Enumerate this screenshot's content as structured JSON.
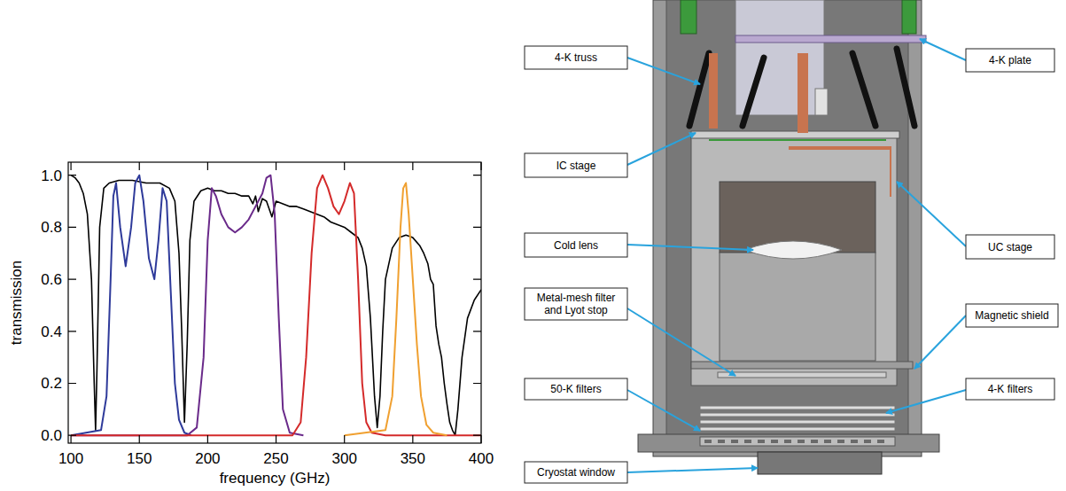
{
  "chart_data": {
    "type": "line",
    "x_label": "frequency (GHz)",
    "y_label": "transmission",
    "xlim": [
      98,
      400
    ],
    "ylim": [
      -0.03,
      1.05
    ],
    "xticks": [
      100,
      150,
      200,
      250,
      300,
      350,
      400
    ],
    "yticks": [
      {
        "value": 0,
        "label": "0.0"
      },
      {
        "value": 0.2,
        "label": "0.2"
      },
      {
        "value": 0.4,
        "label": "0.4"
      },
      {
        "value": 0.6,
        "label": "0.6"
      },
      {
        "value": 0.8,
        "label": "0.8"
      },
      {
        "value": 1,
        "label": "1.0"
      }
    ],
    "grid": false,
    "series": [
      {
        "color": "#000000",
        "x": [
          100,
          103,
          106,
          109,
          112,
          115,
          117,
          118,
          119,
          121,
          124,
          128,
          135,
          145,
          155,
          165,
          172,
          176,
          179,
          181,
          183,
          185,
          187,
          190,
          195,
          200,
          205,
          210,
          215,
          220,
          225,
          230,
          233,
          235,
          237,
          240,
          243,
          247,
          250,
          255,
          260,
          265,
          270,
          275,
          280,
          285,
          290,
          295,
          300,
          305,
          310,
          313,
          316,
          319,
          322,
          324,
          326,
          328,
          330,
          335,
          340,
          345,
          350,
          355,
          358,
          361,
          363,
          365,
          367,
          369,
          371,
          373,
          375,
          377,
          379,
          381,
          383,
          386,
          390,
          395,
          400
        ],
        "values": [
          1.0,
          0.99,
          0.97,
          0.93,
          0.85,
          0.6,
          0.2,
          0.02,
          0.25,
          0.8,
          0.95,
          0.97,
          0.98,
          0.98,
          0.97,
          0.97,
          0.95,
          0.9,
          0.7,
          0.4,
          0.05,
          0.35,
          0.75,
          0.9,
          0.94,
          0.95,
          0.94,
          0.94,
          0.93,
          0.93,
          0.92,
          0.92,
          0.89,
          0.92,
          0.86,
          0.91,
          0.9,
          0.84,
          0.9,
          0.89,
          0.88,
          0.88,
          0.87,
          0.86,
          0.85,
          0.84,
          0.82,
          0.81,
          0.8,
          0.78,
          0.76,
          0.72,
          0.65,
          0.45,
          0.15,
          0.03,
          0.15,
          0.4,
          0.6,
          0.72,
          0.76,
          0.77,
          0.76,
          0.73,
          0.7,
          0.66,
          0.6,
          0.58,
          0.42,
          0.35,
          0.3,
          0.2,
          0.12,
          0.05,
          0.02,
          0.0,
          0.1,
          0.3,
          0.45,
          0.52,
          0.56
        ]
      },
      {
        "color": "#2e3a9a",
        "x": [
          100,
          122,
          126,
          129,
          131,
          133,
          136,
          140,
          144,
          147,
          150,
          153,
          157,
          161,
          164,
          167,
          170,
          173,
          176,
          179,
          183,
          188
        ],
        "values": [
          0,
          0.02,
          0.15,
          0.6,
          0.92,
          0.97,
          0.8,
          0.65,
          0.8,
          0.97,
          1.0,
          0.9,
          0.68,
          0.6,
          0.75,
          0.95,
          0.9,
          0.55,
          0.2,
          0.06,
          0.01,
          0
        ]
      },
      {
        "color": "#6a2a8a",
        "x": [
          100,
          185,
          192,
          197,
          200,
          203,
          206,
          210,
          215,
          220,
          225,
          230,
          235,
          240,
          243,
          246,
          249,
          252,
          255,
          260,
          270
        ],
        "values": [
          0,
          0,
          0.03,
          0.3,
          0.75,
          0.95,
          0.92,
          0.85,
          0.8,
          0.78,
          0.8,
          0.83,
          0.88,
          0.93,
          0.99,
          1.0,
          0.85,
          0.45,
          0.1,
          0.01,
          0
        ]
      },
      {
        "color": "#d42a2a",
        "x": [
          100,
          262,
          268,
          272,
          276,
          280,
          284,
          288,
          292,
          296,
          300,
          304,
          307,
          310,
          313,
          316,
          320,
          330,
          400
        ],
        "values": [
          0,
          0,
          0.05,
          0.3,
          0.7,
          0.95,
          1.0,
          0.95,
          0.88,
          0.85,
          0.9,
          0.97,
          0.93,
          0.6,
          0.2,
          0.05,
          0.01,
          0,
          0
        ]
      },
      {
        "color": "#f0a030",
        "x": [
          300,
          330,
          335,
          338,
          341,
          343,
          345,
          347,
          350,
          353,
          356,
          360,
          365,
          375
        ],
        "values": [
          0,
          0.02,
          0.15,
          0.45,
          0.8,
          0.95,
          0.97,
          0.85,
          0.6,
          0.35,
          0.15,
          0.04,
          0.01,
          0
        ]
      }
    ]
  },
  "diagram": {
    "labels": [
      "4-K truss",
      "4-K plate",
      "IC stage",
      "UC stage",
      "Cold lens",
      "Metal-mesh filter and Lyot stop",
      "Magnetic shield",
      "50-K filters",
      "4-K filters",
      "Cryostat window"
    ]
  }
}
